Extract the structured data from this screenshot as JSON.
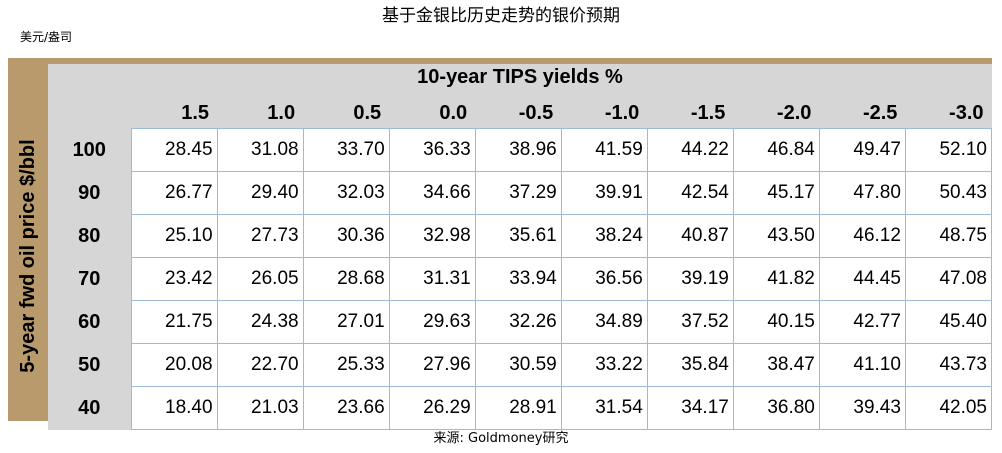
{
  "page": {
    "unit_label": "美元/盎司",
    "source": "来源: Goldmoney研究"
  },
  "chart_data": {
    "type": "table",
    "title": "基于金银比历史走势的银价预期",
    "column_header": "10-year TIPS yields %",
    "row_header": "5-year fwd oil price $/bbl",
    "columns": [
      "1.5",
      "1.0",
      "0.5",
      "0.0",
      "-0.5",
      "-1.0",
      "-1.5",
      "-2.0",
      "-2.5",
      "-3.0"
    ],
    "row_labels": [
      "100",
      "90",
      "80",
      "70",
      "60",
      "50",
      "40"
    ],
    "rows": [
      [
        "28.45",
        "31.08",
        "33.70",
        "36.33",
        "38.96",
        "41.59",
        "44.22",
        "46.84",
        "49.47",
        "52.10"
      ],
      [
        "26.77",
        "29.40",
        "32.03",
        "34.66",
        "37.29",
        "39.91",
        "42.54",
        "45.17",
        "47.80",
        "50.43"
      ],
      [
        "25.10",
        "27.73",
        "30.36",
        "32.98",
        "35.61",
        "38.24",
        "40.87",
        "43.50",
        "46.12",
        "48.75"
      ],
      [
        "23.42",
        "26.05",
        "28.68",
        "31.31",
        "33.94",
        "36.56",
        "39.19",
        "41.82",
        "44.45",
        "47.08"
      ],
      [
        "21.75",
        "24.38",
        "27.01",
        "29.63",
        "32.26",
        "34.89",
        "37.52",
        "40.15",
        "42.77",
        "45.40"
      ],
      [
        "20.08",
        "22.70",
        "25.33",
        "27.96",
        "30.59",
        "33.22",
        "35.84",
        "38.47",
        "41.10",
        "43.73"
      ],
      [
        "18.40",
        "21.03",
        "23.66",
        "26.29",
        "28.91",
        "31.54",
        "34.17",
        "36.80",
        "39.43",
        "42.05"
      ]
    ]
  }
}
